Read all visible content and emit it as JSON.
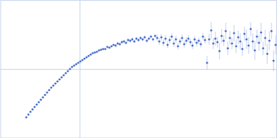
{
  "chart_data": {
    "type": "scatter",
    "tick_labels": false,
    "grid": true,
    "marker": "circle",
    "xlim": [
      -1.15,
      2.85
    ],
    "ylim": [
      -1,
      1
    ],
    "xticks": [
      0
    ],
    "yticks": [
      0
    ],
    "x": [
      -0.77,
      -0.74,
      -0.71,
      -0.68,
      -0.65,
      -0.62,
      -0.59,
      -0.56,
      -0.53,
      -0.5,
      -0.47,
      -0.44,
      -0.41,
      -0.38,
      -0.35,
      -0.32,
      -0.29,
      -0.26,
      -0.23,
      -0.2,
      -0.17,
      -0.14,
      -0.11,
      -0.08,
      -0.05,
      -0.02,
      0.01,
      0.04,
      0.07,
      0.1,
      0.13,
      0.16,
      0.19,
      0.22,
      0.25,
      0.28,
      0.31,
      0.34,
      0.37,
      0.4,
      0.43,
      0.46,
      0.49,
      0.52,
      0.55,
      0.58,
      0.61,
      0.64,
      0.67,
      0.7,
      0.73,
      0.76,
      0.79,
      0.82,
      0.85,
      0.88,
      0.91,
      0.94,
      0.97,
      1.0,
      1.03,
      1.06,
      1.09,
      1.12,
      1.15,
      1.18,
      1.21,
      1.24,
      1.27,
      1.3,
      1.33,
      1.36,
      1.39,
      1.42,
      1.45,
      1.48,
      1.51,
      1.54,
      1.57,
      1.6,
      1.63,
      1.66,
      1.69,
      1.72,
      1.75,
      1.78,
      1.81,
      1.84,
      1.87,
      1.9,
      1.93,
      1.96,
      1.99,
      2.02,
      2.05,
      2.08,
      2.11,
      2.14,
      2.17,
      2.2,
      2.23,
      2.26,
      2.29,
      2.32,
      2.35,
      2.38,
      2.41,
      2.44,
      2.47,
      2.5,
      2.53,
      2.56,
      2.59,
      2.62,
      2.65,
      2.68,
      2.71,
      2.74,
      2.77,
      2.8,
      2.83
    ],
    "series": [
      {
        "color": "#4a6fc9",
        "values": [
          -0.7,
          -0.66,
          -0.62,
          -0.585,
          -0.55,
          -0.515,
          -0.48,
          -0.445,
          -0.41,
          -0.375,
          -0.34,
          -0.305,
          -0.27,
          -0.24,
          -0.21,
          -0.18,
          -0.15,
          -0.12,
          -0.09,
          -0.06,
          -0.03,
          0.0,
          0.03,
          0.05,
          0.07,
          0.09,
          0.11,
          0.13,
          0.15,
          0.17,
          0.19,
          0.21,
          0.23,
          0.24,
          0.25,
          0.27,
          0.28,
          0.29,
          0.29,
          0.32,
          0.31,
          0.33,
          0.35,
          0.34,
          0.37,
          0.36,
          0.39,
          0.4,
          0.38,
          0.42,
          0.41,
          0.43,
          0.4,
          0.44,
          0.42,
          0.45,
          0.43,
          0.46,
          0.41,
          0.44,
          0.47,
          0.43,
          0.48,
          0.45,
          0.4,
          0.46,
          0.38,
          0.44,
          0.35,
          0.42,
          0.47,
          0.37,
          0.43,
          0.33,
          0.4,
          0.45,
          0.36,
          0.41,
          0.44,
          0.39,
          0.34,
          0.43,
          0.38,
          0.41,
          0.36,
          0.47,
          0.42,
          0.09,
          0.43,
          0.56,
          0.37,
          0.44,
          0.39,
          0.26,
          0.48,
          0.41,
          0.55,
          0.3,
          0.45,
          0.37,
          0.52,
          0.33,
          0.46,
          0.4,
          0.29,
          0.51,
          0.43,
          0.34,
          0.58,
          0.4,
          0.27,
          0.47,
          0.38,
          0.53,
          0.3,
          0.45,
          0.22,
          0.41,
          0.55,
          0.12,
          0.35
        ],
        "errors": [
          0.005,
          0.005,
          0.005,
          0.005,
          0.005,
          0.005,
          0.005,
          0.005,
          0.005,
          0.005,
          0.005,
          0.005,
          0.005,
          0.005,
          0.005,
          0.005,
          0.005,
          0.005,
          0.005,
          0.005,
          0.005,
          0.005,
          0.01,
          0.01,
          0.01,
          0.01,
          0.01,
          0.01,
          0.01,
          0.01,
          0.01,
          0.01,
          0.01,
          0.01,
          0.01,
          0.01,
          0.01,
          0.01,
          0.01,
          0.01,
          0.01,
          0.01,
          0.01,
          0.025,
          0.025,
          0.025,
          0.025,
          0.025,
          0.025,
          0.025,
          0.025,
          0.025,
          0.025,
          0.025,
          0.025,
          0.025,
          0.025,
          0.025,
          0.025,
          0.025,
          0.025,
          0.025,
          0.025,
          0.05,
          0.05,
          0.05,
          0.05,
          0.05,
          0.05,
          0.05,
          0.05,
          0.05,
          0.05,
          0.05,
          0.05,
          0.05,
          0.05,
          0.05,
          0.05,
          0.05,
          0.05,
          0.05,
          0.05,
          0.05,
          0.05,
          0.05,
          0.05,
          0.1,
          0.08,
          0.12,
          0.08,
          0.1,
          0.08,
          0.12,
          0.1,
          0.08,
          0.12,
          0.1,
          0.1,
          0.08,
          0.12,
          0.1,
          0.1,
          0.12,
          0.1,
          0.1,
          0.14,
          0.12,
          0.1,
          0.12,
          0.14,
          0.1,
          0.12,
          0.14,
          0.1,
          0.12,
          0.15,
          0.14,
          0.12,
          0.15,
          0.14
        ]
      }
    ]
  }
}
